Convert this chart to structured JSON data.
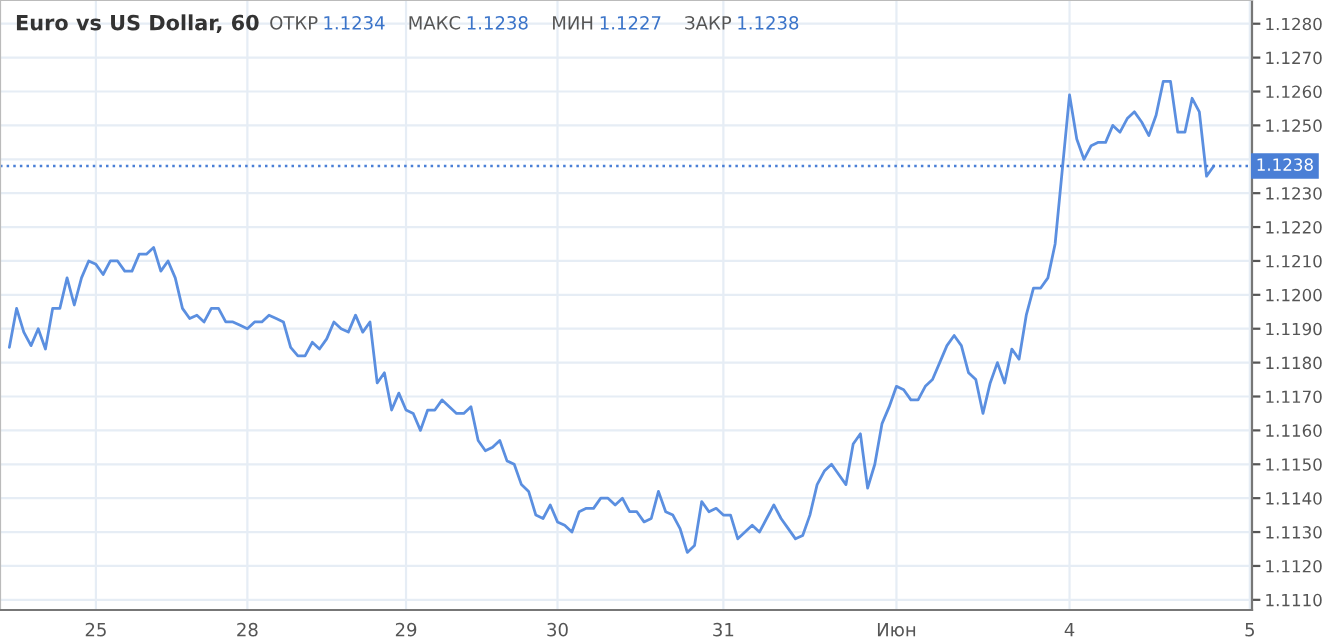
{
  "chart_data": {
    "type": "line",
    "title": "Euro vs US Dollar, 60",
    "annotations": [
      "ОТКР",
      "1.1234",
      "МАКС",
      "1.1238",
      "МИН",
      "1.1227",
      "ЗАКР",
      "1.1238"
    ],
    "series": [
      {
        "color": "#5b8fe0",
        "values": [
          1.11845,
          1.1196,
          1.1189,
          1.1185,
          1.119,
          1.1184,
          1.1196,
          1.1196,
          1.1205,
          1.1197,
          1.1205,
          1.121,
          1.1209,
          1.1206,
          1.121,
          1.121,
          1.1207,
          1.1207,
          1.1212,
          1.1212,
          1.1214,
          1.1207,
          1.121,
          1.1205,
          1.1196,
          1.1193,
          1.1194,
          1.1192,
          1.1196,
          1.1196,
          1.1192,
          1.1192,
          1.1191,
          1.119,
          1.1192,
          1.1192,
          1.1194,
          1.1193,
          1.1192,
          1.11845,
          1.1182,
          1.1182,
          1.1186,
          1.1184,
          1.1187,
          1.1192,
          1.119,
          1.1189,
          1.1194,
          1.1189,
          1.1192,
          1.1174,
          1.1177,
          1.1166,
          1.1171,
          1.1166,
          1.1165,
          1.116,
          1.1166,
          1.1166,
          1.1169,
          1.1167,
          1.1165,
          1.1165,
          1.1167,
          1.1157,
          1.1154,
          1.1155,
          1.1157,
          1.1151,
          1.115,
          1.1144,
          1.1142,
          1.1135,
          1.1134,
          1.1138,
          1.1133,
          1.1132,
          1.113,
          1.1136,
          1.1137,
          1.1137,
          1.114,
          1.114,
          1.1138,
          1.114,
          1.1136,
          1.1136,
          1.1133,
          1.1134,
          1.1142,
          1.1136,
          1.1135,
          1.1131,
          1.1124,
          1.1126,
          1.1139,
          1.1136,
          1.1137,
          1.1135,
          1.1135,
          1.1128,
          1.113,
          1.1132,
          1.113,
          1.1134,
          1.1138,
          1.1134,
          1.1131,
          1.1128,
          1.1129,
          1.1135,
          1.1144,
          1.1148,
          1.115,
          1.1147,
          1.1144,
          1.1156,
          1.1159,
          1.1143,
          1.115,
          1.1162,
          1.1167,
          1.1173,
          1.1172,
          1.1169,
          1.1169,
          1.1173,
          1.1175,
          1.118,
          1.1185,
          1.1188,
          1.1185,
          1.1177,
          1.1175,
          1.1165,
          1.1174,
          1.118,
          1.1174,
          1.1184,
          1.1181,
          1.1194,
          1.1202,
          1.1202,
          1.1205,
          1.1215,
          1.1237,
          1.1259,
          1.1246,
          1.124,
          1.1244,
          1.1245,
          1.1245,
          1.125,
          1.1248,
          1.1252,
          1.1254,
          1.1251,
          1.1247,
          1.1253,
          1.1263,
          1.1263,
          1.1248,
          1.1248,
          1.1258,
          1.1254,
          1.1235,
          1.1238,
          null,
          null,
          null,
          null,
          null
        ]
      }
    ],
    "categories": [
      null,
      null,
      null,
      null,
      null,
      null,
      null,
      null,
      null,
      null,
      null,
      null,
      "25",
      null,
      null,
      null,
      null,
      null,
      null,
      null,
      null,
      null,
      null,
      null,
      null,
      null,
      null,
      null,
      null,
      null,
      null,
      null,
      null,
      "28",
      null,
      null,
      null,
      null,
      null,
      null,
      null,
      null,
      null,
      null,
      null,
      null,
      null,
      null,
      null,
      null,
      null,
      null,
      null,
      null,
      null,
      "29",
      null,
      null,
      null,
      null,
      null,
      null,
      null,
      null,
      null,
      null,
      null,
      null,
      null,
      null,
      null,
      null,
      null,
      null,
      null,
      null,
      "30",
      null,
      null,
      null,
      null,
      null,
      null,
      null,
      null,
      null,
      null,
      null,
      null,
      null,
      null,
      null,
      null,
      null,
      null,
      null,
      null,
      null,
      null,
      "31",
      null,
      null,
      null,
      null,
      null,
      null,
      null,
      null,
      null,
      null,
      null,
      null,
      null,
      null,
      null,
      null,
      null,
      null,
      null,
      null,
      null,
      null,
      null,
      "Июн",
      null,
      null,
      null,
      null,
      null,
      null,
      null,
      null,
      null,
      null,
      null,
      null,
      null,
      null,
      null,
      null,
      null,
      null,
      null,
      null,
      null,
      null,
      null,
      "4",
      null,
      null,
      null,
      null,
      null,
      null,
      null,
      null,
      null,
      null,
      null,
      null,
      null,
      null,
      null,
      null,
      null,
      null,
      null,
      null,
      null,
      null,
      null,
      null,
      "5"
    ],
    "ylim": [
      1.1107,
      1.1287
    ],
    "yticks": [
      {
        "value": 1.111,
        "label": "1.1110"
      },
      {
        "value": 1.112,
        "label": "1.1120"
      },
      {
        "value": 1.113,
        "label": "1.1130"
      },
      {
        "value": 1.114,
        "label": "1.1140"
      },
      {
        "value": 1.115,
        "label": "1.1150"
      },
      {
        "value": 1.116,
        "label": "1.1160"
      },
      {
        "value": 1.117,
        "label": "1.1170"
      },
      {
        "value": 1.118,
        "label": "1.1180"
      },
      {
        "value": 1.119,
        "label": "1.1190"
      },
      {
        "value": 1.12,
        "label": "1.1200"
      },
      {
        "value": 1.121,
        "label": "1.1210"
      },
      {
        "value": 1.122,
        "label": "1.1220"
      },
      {
        "value": 1.123,
        "label": "1.1230"
      },
      {
        "value": 1.124,
        "label": null
      },
      {
        "value": 1.125,
        "label": "1.1250"
      },
      {
        "value": 1.126,
        "label": "1.1260"
      },
      {
        "value": 1.127,
        "label": "1.1270"
      },
      {
        "value": 1.128,
        "label": "1.1280"
      }
    ],
    "ref_lines": [
      {
        "axis": "y",
        "value": 1.1238,
        "label": "1.1238",
        "color": "#4a7fd6",
        "line_style": "dotted"
      }
    ],
    "grid": true,
    "legend": false,
    "marker": "none",
    "line_style": "solid"
  }
}
